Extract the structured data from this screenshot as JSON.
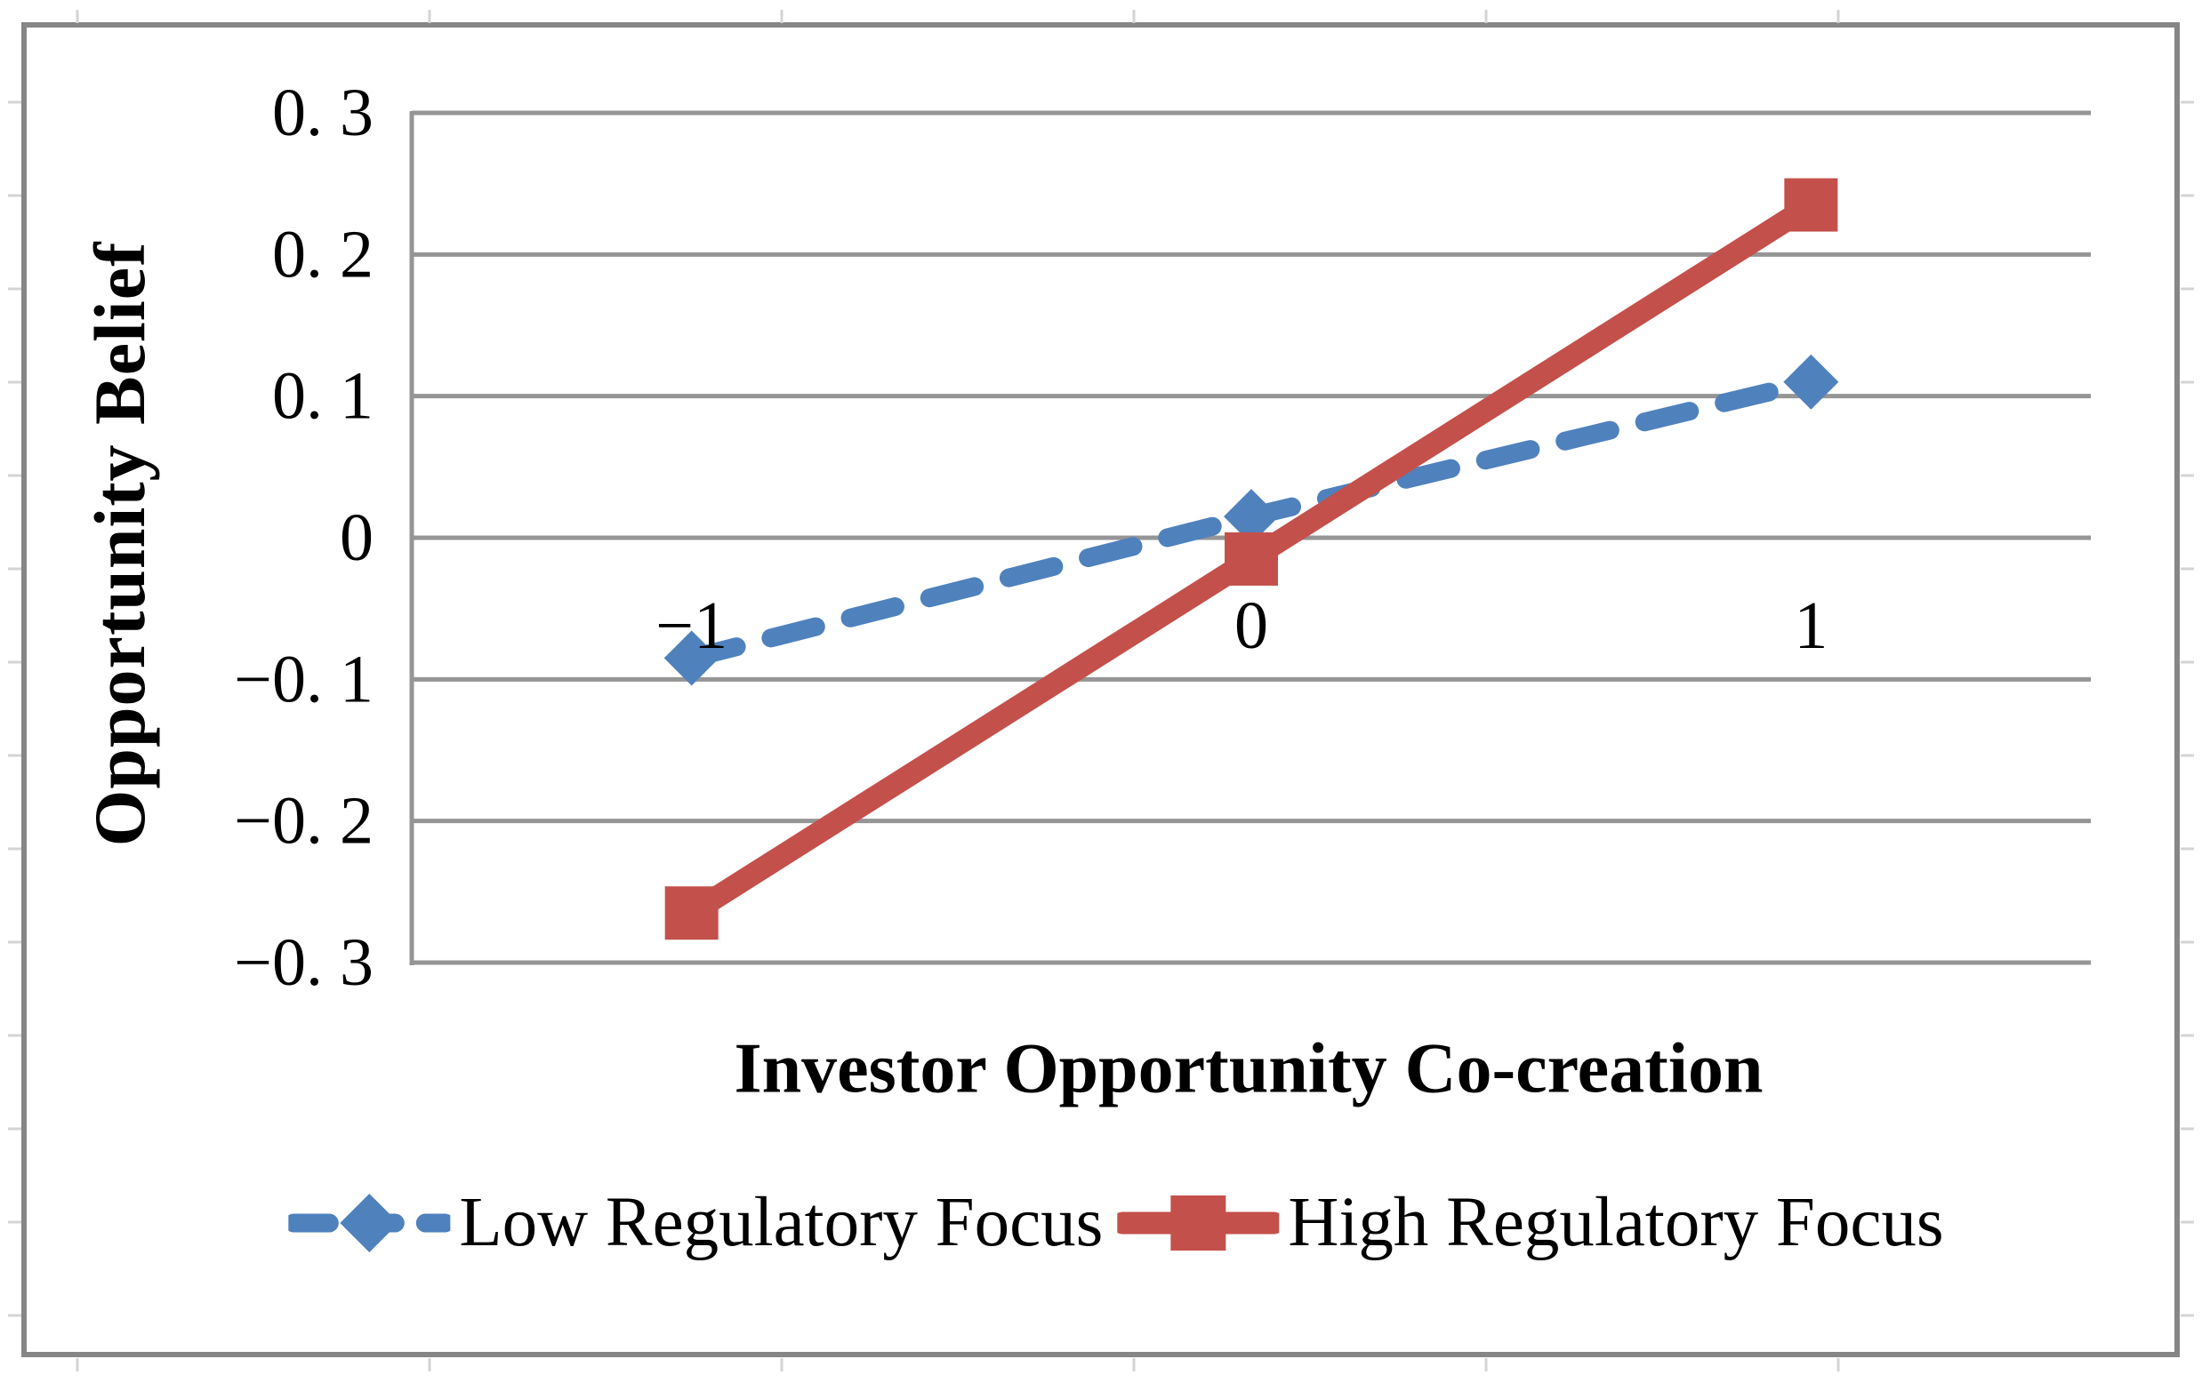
{
  "figure": {
    "y_axis_title": "Opportunity Belief",
    "x_axis_title": "Investor Opportunity Co-creation"
  },
  "legend": [
    {
      "key": "low",
      "label": "Low Regulatory Focus"
    },
    {
      "key": "high",
      "label": "High Regulatory Focus"
    }
  ],
  "colors": {
    "low": "#4F81BD",
    "high": "#C4504B",
    "gridline": "#959595",
    "axis": "#959595",
    "frame": "#868686",
    "cell_tick": "#D4D4D4",
    "text": "#000000"
  },
  "chart_data": {
    "type": "line",
    "categories": [
      -1,
      0,
      1
    ],
    "x_tick_labels": [
      "−1",
      "0",
      "1"
    ],
    "y_ticks": [
      0.3,
      0.2,
      0.1,
      0,
      -0.1,
      -0.2,
      -0.3
    ],
    "y_tick_labels": [
      "0. 3",
      "0. 2",
      "0. 1",
      "0",
      "−0. 1",
      "−0. 2",
      "−0. 3"
    ],
    "ylim": [
      -0.3,
      0.3
    ],
    "series": [
      {
        "name": "Low Regulatory Focus",
        "key": "low",
        "values": [
          -0.085,
          0.015,
          0.11
        ],
        "style": "dashed",
        "marker": "diamond"
      },
      {
        "name": "High Regulatory Focus",
        "key": "high",
        "values": [
          -0.265,
          -0.015,
          0.235
        ],
        "style": "solid",
        "marker": "square"
      }
    ],
    "title": "",
    "xlabel": "Investor Opportunity Co-creation",
    "ylabel": "Opportunity Belief",
    "grid": "horizontal",
    "legend_position": "bottom"
  }
}
